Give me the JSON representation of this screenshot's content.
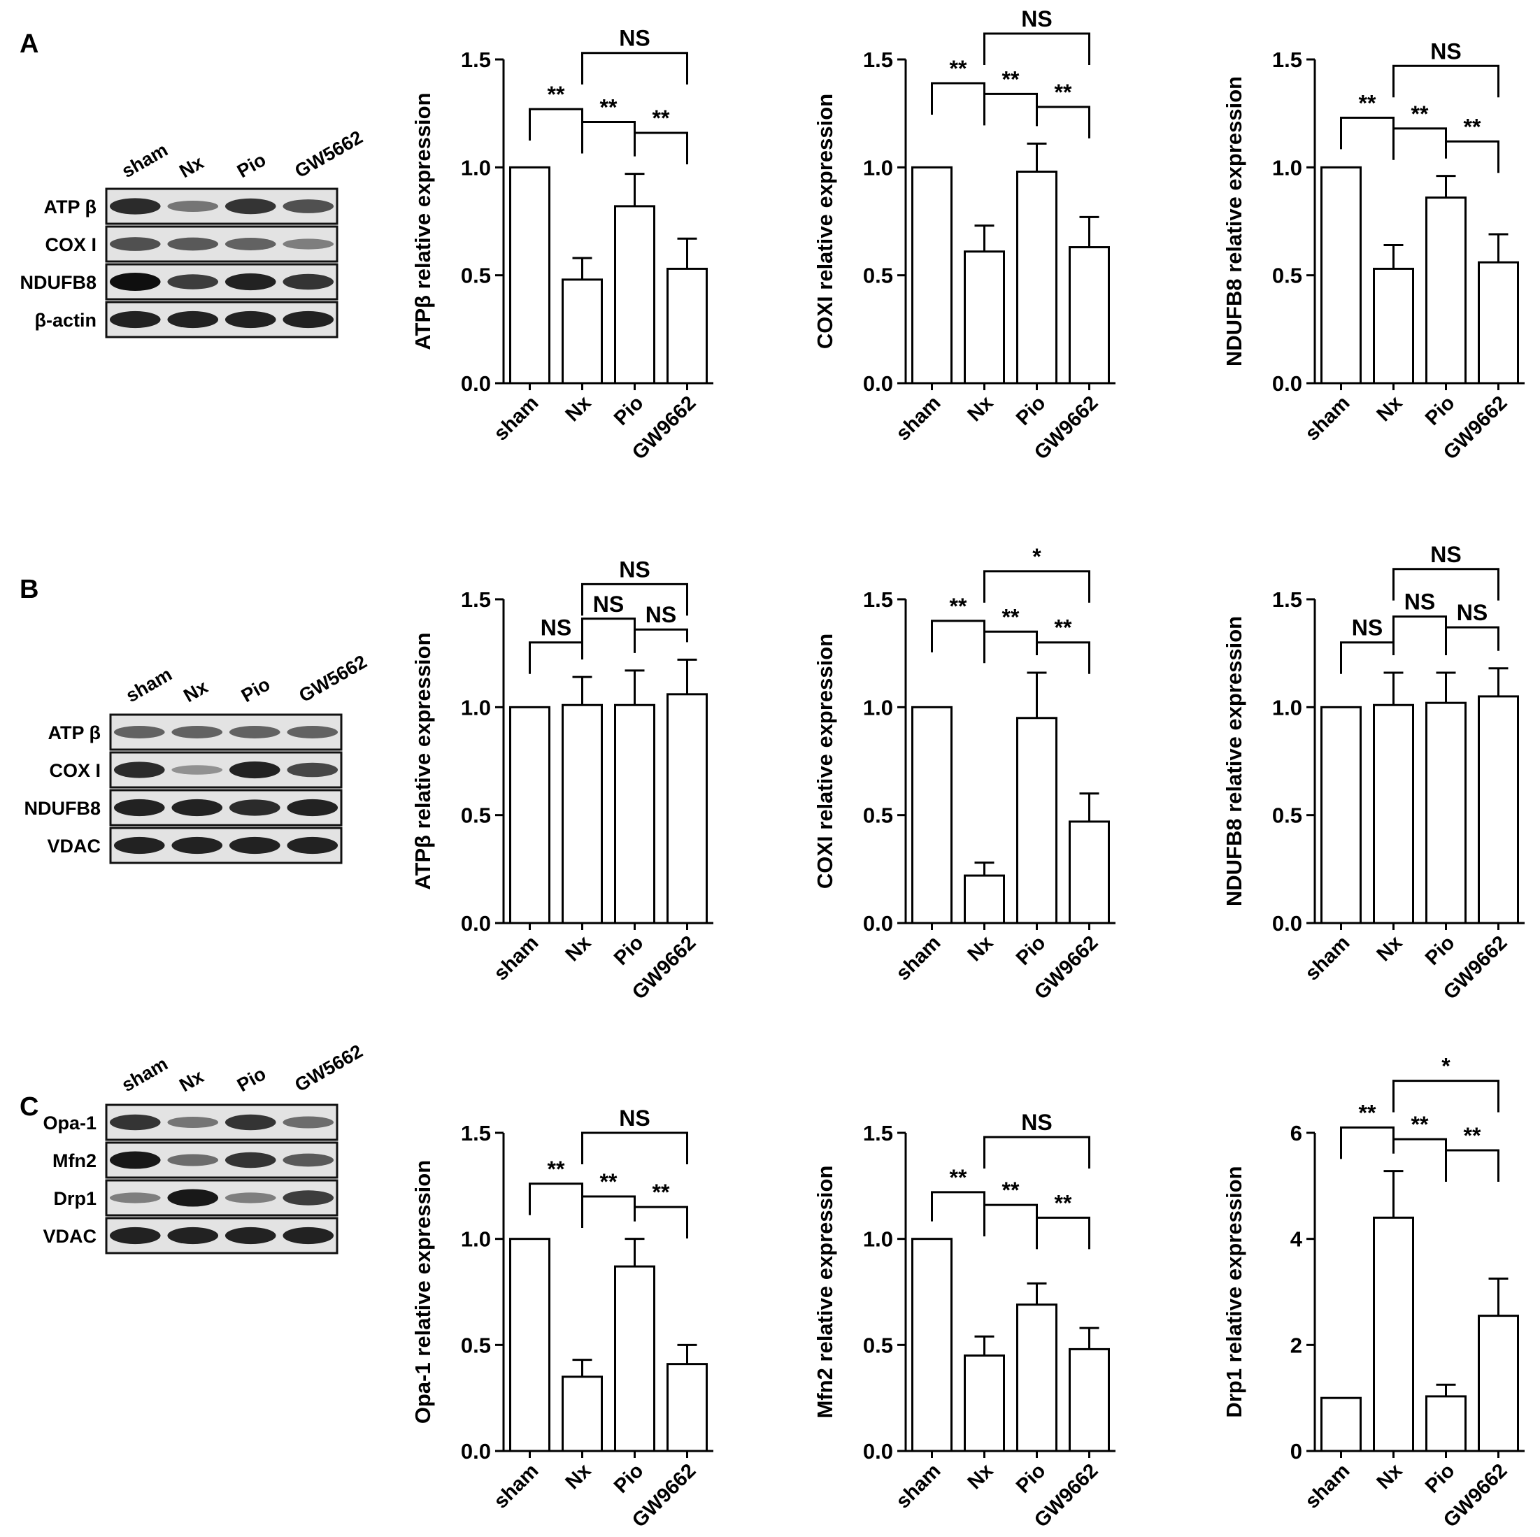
{
  "panels": [
    {
      "letter": "A",
      "blot": {
        "lanes": [
          "sham",
          "Nx",
          "Pio",
          "GW5662"
        ],
        "rows": [
          {
            "label": "ATP β",
            "intensity": [
              0.85,
              0.45,
              0.8,
              0.65
            ]
          },
          {
            "label": "COX I",
            "intensity": [
              0.65,
              0.6,
              0.55,
              0.4
            ]
          },
          {
            "label": "NDUFB8",
            "intensity": [
              1.0,
              0.75,
              0.9,
              0.8
            ]
          },
          {
            "label": "β-actin",
            "intensity": [
              0.9,
              0.9,
              0.9,
              0.9
            ]
          }
        ]
      }
    },
    {
      "letter": "B",
      "blot": {
        "lanes": [
          "sham",
          "Nx",
          "Pio",
          "GW5662"
        ],
        "rows": [
          {
            "label": "ATP β",
            "intensity": [
              0.55,
              0.55,
              0.55,
              0.55
            ]
          },
          {
            "label": "COX I",
            "intensity": [
              0.85,
              0.3,
              0.9,
              0.7
            ]
          },
          {
            "label": "NDUFB8",
            "intensity": [
              0.9,
              0.9,
              0.85,
              0.9
            ]
          },
          {
            "label": "VDAC",
            "intensity": [
              0.9,
              0.9,
              0.9,
              0.9
            ]
          }
        ]
      }
    },
    {
      "letter": "C",
      "blot": {
        "lanes": [
          "sham",
          "Nx",
          "Pio",
          "GW5662"
        ],
        "rows": [
          {
            "label": "Opa-1",
            "intensity": [
              0.8,
              0.45,
              0.8,
              0.5
            ]
          },
          {
            "label": "Mfn2",
            "intensity": [
              0.95,
              0.5,
              0.8,
              0.6
            ]
          },
          {
            "label": "Drp1",
            "intensity": [
              0.4,
              0.95,
              0.4,
              0.75
            ]
          },
          {
            "label": "VDAC",
            "intensity": [
              0.9,
              0.9,
              0.9,
              0.9
            ]
          }
        ]
      }
    }
  ],
  "chart_data": [
    {
      "id": "A1",
      "type": "bar",
      "categories": [
        "sham",
        "Nx",
        "Pio",
        "GW9662"
      ],
      "values": [
        1.0,
        0.48,
        0.82,
        0.53
      ],
      "errors": [
        0,
        0.1,
        0.15,
        0.14
      ],
      "ylabel": "ATPβ  relative expression",
      "ylim": [
        0,
        1.5
      ],
      "yticks": [
        "0.0",
        "0.5",
        "1.0",
        "1.5"
      ],
      "comparisons": [
        {
          "from": 0,
          "to": 1,
          "label": "**",
          "level": 1.27
        },
        {
          "from": 1,
          "to": 2,
          "label": "**",
          "level": 1.21
        },
        {
          "from": 2,
          "to": 3,
          "label": "**",
          "level": 1.16
        },
        {
          "from": 1,
          "to": 3,
          "label": "NS",
          "level": 1.53
        }
      ]
    },
    {
      "id": "A2",
      "type": "bar",
      "categories": [
        "sham",
        "Nx",
        "Pio",
        "GW9662"
      ],
      "values": [
        1.0,
        0.61,
        0.98,
        0.63
      ],
      "errors": [
        0,
        0.12,
        0.13,
        0.14
      ],
      "ylabel": "COXI relative expression",
      "ylim": [
        0,
        1.5
      ],
      "yticks": [
        "0.0",
        "0.5",
        "1.0",
        "1.5"
      ],
      "comparisons": [
        {
          "from": 0,
          "to": 1,
          "label": "**",
          "level": 1.39
        },
        {
          "from": 1,
          "to": 2,
          "label": "**",
          "level": 1.34
        },
        {
          "from": 2,
          "to": 3,
          "label": "**",
          "level": 1.28
        },
        {
          "from": 1,
          "to": 3,
          "label": "NS",
          "level": 1.62
        }
      ]
    },
    {
      "id": "A3",
      "type": "bar",
      "categories": [
        "sham",
        "Nx",
        "Pio",
        "GW9662"
      ],
      "values": [
        1.0,
        0.53,
        0.86,
        0.56
      ],
      "errors": [
        0,
        0.11,
        0.1,
        0.13
      ],
      "ylabel": "NDUFB8 relative expression",
      "ylim": [
        0,
        1.5
      ],
      "yticks": [
        "0.0",
        "0.5",
        "1.0",
        "1.5"
      ],
      "comparisons": [
        {
          "from": 0,
          "to": 1,
          "label": "**",
          "level": 1.23
        },
        {
          "from": 1,
          "to": 2,
          "label": "**",
          "level": 1.18
        },
        {
          "from": 2,
          "to": 3,
          "label": "**",
          "level": 1.12
        },
        {
          "from": 1,
          "to": 3,
          "label": "NS",
          "level": 1.47
        }
      ]
    },
    {
      "id": "B1",
      "type": "bar",
      "categories": [
        "sham",
        "Nx",
        "Pio",
        "GW9662"
      ],
      "values": [
        1.0,
        1.01,
        1.01,
        1.06
      ],
      "errors": [
        0,
        0.13,
        0.16,
        0.16
      ],
      "ylabel": "ATPβ  relative expression",
      "ylim": [
        0,
        1.5
      ],
      "yticks": [
        "0.0",
        "0.5",
        "1.0",
        "1.5"
      ],
      "comparisons": [
        {
          "from": 0,
          "to": 1,
          "label": "NS",
          "level": 1.3
        },
        {
          "from": 1,
          "to": 2,
          "label": "NS",
          "level": 1.41
        },
        {
          "from": 2,
          "to": 3,
          "label": "NS",
          "level": 1.36
        },
        {
          "from": 1,
          "to": 3,
          "label": "NS",
          "level": 1.57
        }
      ]
    },
    {
      "id": "B2",
      "type": "bar",
      "categories": [
        "sham",
        "Nx",
        "Pio",
        "GW9662"
      ],
      "values": [
        1.0,
        0.22,
        0.95,
        0.47
      ],
      "errors": [
        0,
        0.06,
        0.21,
        0.13
      ],
      "ylabel": "COXI relative expression",
      "ylim": [
        0,
        1.5
      ],
      "yticks": [
        "0.0",
        "0.5",
        "1.0",
        "1.5"
      ],
      "comparisons": [
        {
          "from": 0,
          "to": 1,
          "label": "**",
          "level": 1.4
        },
        {
          "from": 1,
          "to": 2,
          "label": "**",
          "level": 1.35
        },
        {
          "from": 2,
          "to": 3,
          "label": "**",
          "level": 1.3
        },
        {
          "from": 1,
          "to": 3,
          "label": "*",
          "level": 1.63
        }
      ]
    },
    {
      "id": "B3",
      "type": "bar",
      "categories": [
        "sham",
        "Nx",
        "Pio",
        "GW9662"
      ],
      "values": [
        1.0,
        1.01,
        1.02,
        1.05
      ],
      "errors": [
        0,
        0.15,
        0.14,
        0.13
      ],
      "ylabel": "NDUFB8 relative expression",
      "ylim": [
        0,
        1.5
      ],
      "yticks": [
        "0.0",
        "0.5",
        "1.0",
        "1.5"
      ],
      "comparisons": [
        {
          "from": 0,
          "to": 1,
          "label": "NS",
          "level": 1.3
        },
        {
          "from": 1,
          "to": 2,
          "label": "NS",
          "level": 1.42
        },
        {
          "from": 2,
          "to": 3,
          "label": "NS",
          "level": 1.37
        },
        {
          "from": 1,
          "to": 3,
          "label": "NS",
          "level": 1.64
        }
      ]
    },
    {
      "id": "C1",
      "type": "bar",
      "categories": [
        "sham",
        "Nx",
        "Pio",
        "GW9662"
      ],
      "values": [
        1.0,
        0.35,
        0.87,
        0.41
      ],
      "errors": [
        0,
        0.08,
        0.13,
        0.09
      ],
      "ylabel": "Opa-1 relative expression",
      "ylim": [
        0,
        1.5
      ],
      "yticks": [
        "0.0",
        "0.5",
        "1.0",
        "1.5"
      ],
      "comparisons": [
        {
          "from": 0,
          "to": 1,
          "label": "**",
          "level": 1.26
        },
        {
          "from": 1,
          "to": 2,
          "label": "**",
          "level": 1.2
        },
        {
          "from": 2,
          "to": 3,
          "label": "**",
          "level": 1.15
        },
        {
          "from": 1,
          "to": 3,
          "label": "NS",
          "level": 1.5
        }
      ]
    },
    {
      "id": "C2",
      "type": "bar",
      "categories": [
        "sham",
        "Nx",
        "Pio",
        "GW9662"
      ],
      "values": [
        1.0,
        0.45,
        0.69,
        0.48
      ],
      "errors": [
        0,
        0.09,
        0.1,
        0.1
      ],
      "ylabel": "Mfn2 relative expression",
      "ylim": [
        0,
        1.5
      ],
      "yticks": [
        "0.0",
        "0.5",
        "1.0",
        "1.5"
      ],
      "comparisons": [
        {
          "from": 0,
          "to": 1,
          "label": "**",
          "level": 1.22
        },
        {
          "from": 1,
          "to": 2,
          "label": "**",
          "level": 1.16
        },
        {
          "from": 2,
          "to": 3,
          "label": "**",
          "level": 1.1
        },
        {
          "from": 1,
          "to": 3,
          "label": "NS",
          "level": 1.48
        }
      ]
    },
    {
      "id": "C3",
      "type": "bar",
      "categories": [
        "sham",
        "Nx",
        "Pio",
        "GW9662"
      ],
      "values": [
        1.0,
        4.4,
        1.03,
        2.55
      ],
      "errors": [
        0,
        0.88,
        0.22,
        0.7
      ],
      "ylabel": "Drp1 relative expression",
      "ylim": [
        0,
        6
      ],
      "yticks": [
        "0",
        "2",
        "4",
        "6"
      ],
      "comparisons": [
        {
          "from": 0,
          "to": 1,
          "label": "**",
          "level": 6.1
        },
        {
          "from": 1,
          "to": 2,
          "label": "**",
          "level": 5.88
        },
        {
          "from": 2,
          "to": 3,
          "label": "**",
          "level": 5.67
        },
        {
          "from": 1,
          "to": 3,
          "label": "*",
          "level": 6.98
        }
      ]
    }
  ]
}
